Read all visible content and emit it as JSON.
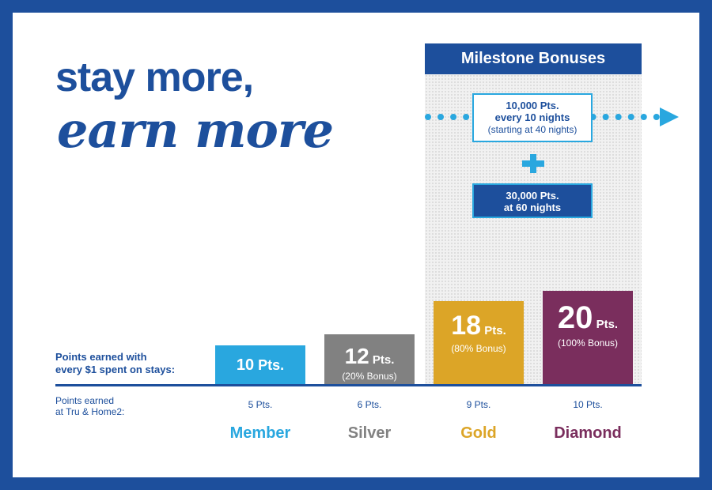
{
  "headline": {
    "line1": "stay more,",
    "line2": "earn more"
  },
  "milestone": {
    "header": "Milestone Bonuses",
    "bonus1_line1": "10,000 Pts.",
    "bonus1_line2": "every 10 nights",
    "bonus1_line3": "(starting at 40 nights)",
    "bonus2_line1": "30,000 Pts.",
    "bonus2_line2": "at 60 nights"
  },
  "labels": {
    "points_line1": "Points earned with",
    "points_line2": "every $1 spent on stays:",
    "tru_line1": "Points earned",
    "tru_line2": "at Tru & Home2:"
  },
  "colors": {
    "brand_blue": "#1d4f9c",
    "accent_cyan": "#29a7df",
    "member": "#29a7df",
    "silver": "#818181",
    "gold": "#dca527",
    "diamond": "#7a2e5d"
  },
  "chart_data": {
    "type": "bar",
    "categories": [
      "Member",
      "Silver",
      "Gold",
      "Diamond"
    ],
    "values": [
      10,
      12,
      18,
      20
    ],
    "value_labels": [
      "10",
      "12",
      "18",
      "20"
    ],
    "unit": "Pts.",
    "bonus_labels": [
      "",
      "(20% Bonus)",
      "(80% Bonus)",
      "(100% Bonus)"
    ],
    "tru_home2_values": [
      "5 Pts.",
      "6 Pts.",
      "9 Pts.",
      "10 Pts."
    ],
    "colors": [
      "#29a7df",
      "#818181",
      "#dca527",
      "#7a2e5d"
    ],
    "title": "",
    "xlabel": "",
    "ylabel": ""
  }
}
